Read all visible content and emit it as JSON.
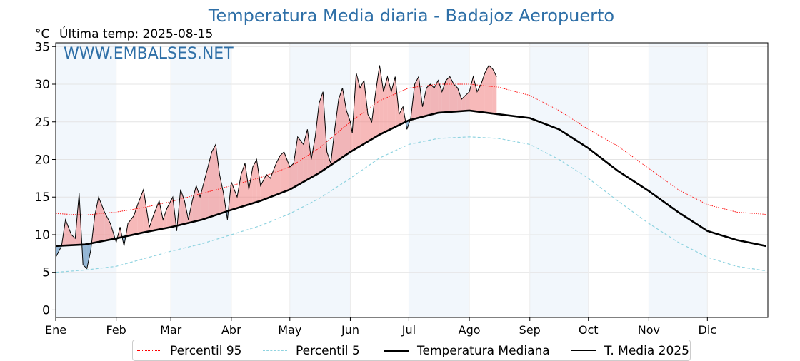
{
  "title": "Temperatura Media diaria - Badajoz Aeropuerto",
  "unit": "°C",
  "subtitle": "Última temp: 2025-08-15",
  "watermark": "WWW.EMBALSES.NET",
  "legend": {
    "p95": "Percentil 95",
    "p5": "Percentil 5",
    "median": "Temperatura Mediana",
    "current": "T. Media 2025"
  },
  "colors": {
    "p95": "#ff0000",
    "p5": "#8fd3e0",
    "median": "#000000",
    "current": "#000000",
    "above_fill": "#f08080",
    "below_fill": "#4682b4",
    "month_band": "#dbe8f5",
    "title": "#2e6fa7"
  },
  "chart_data": {
    "type": "line",
    "x_axis": {
      "labels": [
        "Ene",
        "Feb",
        "Mar",
        "Abr",
        "May",
        "Jun",
        "Jul",
        "Ago",
        "Sep",
        "Oct",
        "Nov",
        "Dic"
      ],
      "range_days": [
        0,
        365
      ]
    },
    "y_axis": {
      "ylim": [
        -1,
        35.5
      ],
      "ticks": [
        0,
        5,
        10,
        15,
        20,
        25,
        30,
        35
      ]
    },
    "grid": true,
    "alternating_month_bands": true,
    "legend_position": "bottom-center",
    "series": [
      {
        "key": "p95",
        "name": "Percentil 95",
        "style": "dotted red",
        "x": [
          0,
          15,
          31,
          45,
          59,
          75,
          90,
          105,
          120,
          135,
          151,
          166,
          181,
          196,
          212,
          227,
          243,
          258,
          273,
          288,
          304,
          319,
          334,
          349,
          364
        ],
        "y": [
          12.8,
          12.6,
          13.0,
          13.6,
          14.4,
          15.5,
          16.5,
          17.6,
          19.0,
          21.5,
          25.0,
          27.8,
          29.5,
          30.0,
          30.0,
          29.6,
          28.5,
          26.5,
          24.0,
          21.8,
          18.8,
          16.0,
          14.0,
          13.0,
          12.7
        ]
      },
      {
        "key": "p5",
        "name": "Percentil 5",
        "style": "dashed light blue",
        "x": [
          0,
          15,
          31,
          45,
          59,
          75,
          90,
          105,
          120,
          135,
          151,
          166,
          181,
          196,
          212,
          227,
          243,
          258,
          273,
          288,
          304,
          319,
          334,
          349,
          364
        ],
        "y": [
          5.0,
          5.3,
          5.8,
          6.8,
          7.8,
          8.8,
          10.0,
          11.2,
          12.8,
          14.8,
          17.5,
          20.2,
          22.0,
          22.8,
          23.0,
          22.8,
          22.0,
          20.0,
          17.5,
          14.5,
          11.5,
          9.0,
          7.0,
          5.8,
          5.2
        ]
      },
      {
        "key": "median",
        "name": "Temperatura Mediana",
        "style": "thick black",
        "x": [
          0,
          15,
          31,
          45,
          59,
          75,
          90,
          105,
          120,
          135,
          151,
          166,
          181,
          196,
          212,
          227,
          243,
          258,
          273,
          288,
          304,
          319,
          334,
          349,
          364
        ],
        "y": [
          8.5,
          8.7,
          9.5,
          10.3,
          11.0,
          12.0,
          13.3,
          14.5,
          16.0,
          18.2,
          21.0,
          23.3,
          25.2,
          26.2,
          26.5,
          26.0,
          25.5,
          24.0,
          21.5,
          18.5,
          15.8,
          13.0,
          10.5,
          9.3,
          8.5
        ]
      },
      {
        "key": "current",
        "name": "T. Media 2025",
        "style": "thin black",
        "x": [
          0,
          3,
          5,
          8,
          10,
          12,
          14,
          16,
          18,
          20,
          22,
          25,
          28,
          31,
          33,
          35,
          37,
          40,
          42,
          45,
          48,
          50,
          53,
          55,
          57,
          60,
          62,
          64,
          66,
          68,
          70,
          72,
          74,
          76,
          78,
          80,
          82,
          84,
          86,
          88,
          90,
          93,
          95,
          97,
          99,
          101,
          103,
          105,
          108,
          110,
          113,
          115,
          117,
          120,
          122,
          124,
          127,
          129,
          131,
          133,
          135,
          137,
          139,
          141,
          143,
          145,
          147,
          149,
          151,
          152,
          154,
          156,
          158,
          160,
          162,
          164,
          166,
          168,
          170,
          172,
          174,
          176,
          178,
          180,
          182,
          184,
          186,
          188,
          190,
          192,
          194,
          196,
          198,
          200,
          202,
          204,
          206,
          208,
          210,
          212,
          214,
          216,
          218,
          220,
          222,
          224,
          226
        ],
        "y": [
          7.0,
          8.5,
          12.0,
          10.0,
          9.5,
          15.5,
          6.0,
          5.5,
          8.0,
          12.5,
          15.0,
          13.0,
          11.5,
          9.0,
          11.0,
          8.5,
          11.5,
          12.5,
          14.0,
          16.0,
          11.0,
          12.5,
          14.5,
          12.0,
          13.5,
          15.0,
          10.5,
          16.0,
          14.5,
          12.0,
          14.5,
          16.5,
          15.0,
          17.0,
          19.0,
          21.0,
          22.0,
          18.0,
          15.5,
          12.0,
          17.0,
          15.0,
          18.0,
          19.5,
          16.0,
          19.0,
          20.0,
          16.5,
          18.0,
          17.5,
          19.5,
          20.5,
          21.0,
          19.0,
          19.5,
          23.0,
          22.0,
          24.0,
          20.0,
          23.0,
          27.5,
          29.0,
          21.0,
          19.5,
          24.0,
          28.0,
          29.5,
          26.5,
          25.0,
          23.5,
          31.5,
          29.5,
          30.5,
          26.0,
          25.0,
          29.0,
          32.5,
          29.0,
          31.0,
          29.0,
          31.0,
          26.0,
          27.0,
          24.0,
          25.5,
          30.0,
          31.0,
          27.0,
          29.5,
          30.0,
          29.5,
          30.5,
          29.0,
          30.5,
          31.0,
          30.0,
          29.5,
          28.0,
          28.5,
          29.0,
          31.0,
          29.0,
          30.0,
          31.5,
          32.5,
          32.0,
          31.0
        ]
      }
    ]
  }
}
